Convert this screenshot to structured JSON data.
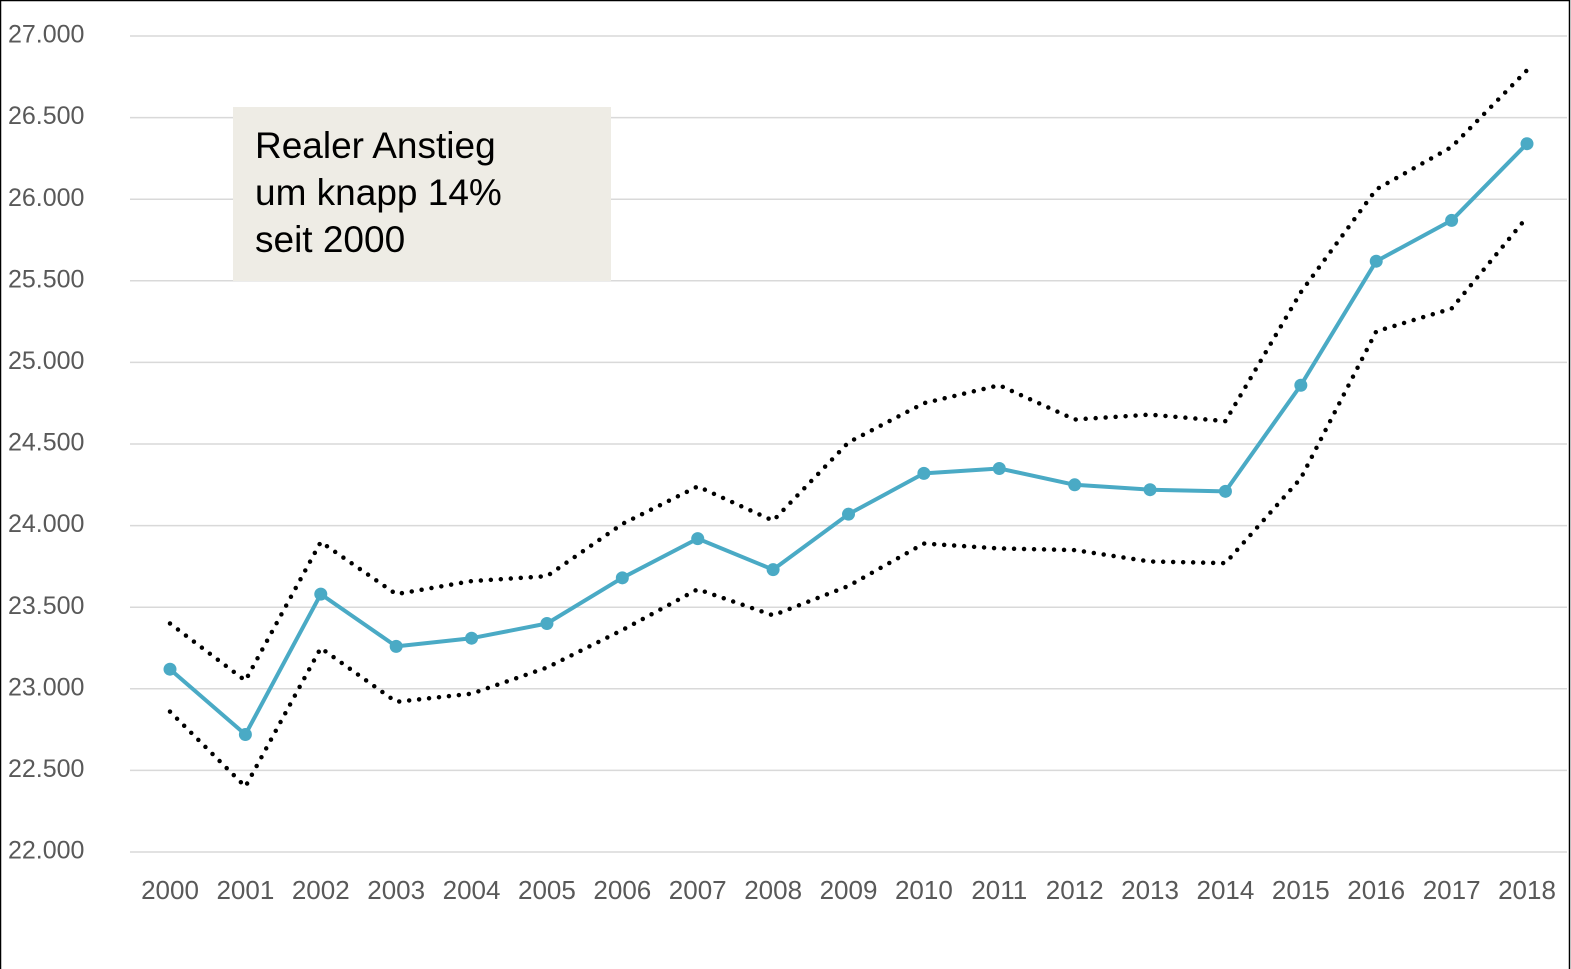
{
  "chart_data": {
    "type": "line",
    "annotation": [
      "Realer Anstieg",
      "um knapp 14%",
      "seit 2000"
    ],
    "categories": [
      "2000",
      "2001",
      "2002",
      "2003",
      "2004",
      "2005",
      "2006",
      "2007",
      "2008",
      "2009",
      "2010",
      "2011",
      "2012",
      "2013",
      "2014",
      "2015",
      "2016",
      "2017",
      "2018"
    ],
    "series": [
      {
        "color": "#000000",
        "dash": "dotted",
        "markers": false,
        "values": [
          23400,
          23050,
          23900,
          23580,
          23660,
          23690,
          24010,
          24240,
          24030,
          24510,
          24750,
          24860,
          24650,
          24680,
          24640,
          25430,
          26060,
          26320,
          26790
        ]
      },
      {
        "color": "#4aaac5",
        "dash": "solid",
        "markers": true,
        "values": [
          23120,
          22720,
          23580,
          23260,
          23310,
          23400,
          23680,
          23920,
          23730,
          24070,
          24320,
          24350,
          24250,
          24220,
          24210,
          24860,
          25620,
          25870,
          26340
        ]
      },
      {
        "color": "#000000",
        "dash": "dotted",
        "markers": false,
        "values": [
          22860,
          22400,
          23250,
          22920,
          22970,
          23130,
          23360,
          23610,
          23450,
          23630,
          23890,
          23860,
          23850,
          23780,
          23770,
          24290,
          25190,
          25330,
          25890
        ]
      }
    ],
    "ylim": [
      22000,
      27000
    ],
    "yticks": [
      {
        "value": 22000,
        "label": "22.000"
      },
      {
        "value": 22500,
        "label": "22.500"
      },
      {
        "value": 23000,
        "label": "23.000"
      },
      {
        "value": 23500,
        "label": "23.500"
      },
      {
        "value": 24000,
        "label": "24.000"
      },
      {
        "value": 24500,
        "label": "24.500"
      },
      {
        "value": 25000,
        "label": "25.000"
      },
      {
        "value": 25500,
        "label": "25.500"
      },
      {
        "value": 26000,
        "label": "26.000"
      },
      {
        "value": 26500,
        "label": "26.500"
      },
      {
        "value": 27000,
        "label": "27.000"
      }
    ],
    "grid": true
  }
}
